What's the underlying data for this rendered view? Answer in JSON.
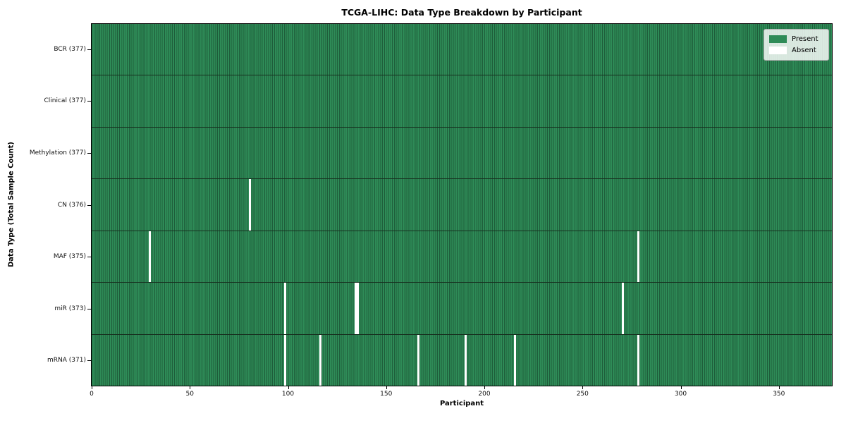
{
  "chart_data": {
    "type": "heatmap",
    "title": "TCGA-LIHC: Data Type Breakdown by Participant",
    "xlabel": "Participant",
    "ylabel": "Data Type (Total Sample Count)",
    "n_participants": 377,
    "x_ticks": [
      0,
      50,
      100,
      150,
      200,
      250,
      300,
      350
    ],
    "grid": false,
    "legend_position": "upper right",
    "rows": [
      {
        "key": "bcr",
        "label": "BCR (377)",
        "data_type": "BCR",
        "total": 377,
        "absent_participants": []
      },
      {
        "key": "clinical",
        "label": "Clinical (377)",
        "data_type": "Clinical",
        "total": 377,
        "absent_participants": []
      },
      {
        "key": "methylation",
        "label": "Methylation (377)",
        "data_type": "Methylation",
        "total": 377,
        "absent_participants": []
      },
      {
        "key": "cn",
        "label": "CN (376)",
        "data_type": "CN",
        "total": 376,
        "absent_participants": [
          80
        ]
      },
      {
        "key": "maf",
        "label": "MAF (375)",
        "data_type": "MAF",
        "total": 375,
        "absent_participants": [
          29,
          278
        ]
      },
      {
        "key": "mir",
        "label": "miR (373)",
        "data_type": "miR",
        "total": 373,
        "absent_participants": [
          98,
          134,
          135,
          270
        ]
      },
      {
        "key": "mrna",
        "label": "mRNA (371)",
        "data_type": "mRNA",
        "total": 371,
        "absent_participants": [
          98,
          116,
          166,
          190,
          215,
          278
        ]
      }
    ],
    "legend": [
      {
        "label": "Present",
        "color": "#2e8b57"
      },
      {
        "label": "Absent",
        "color": "#ffffff"
      }
    ],
    "colors": {
      "present": "#2e8b57",
      "absent": "#ffffff",
      "cell_edge": "#1e5c3a",
      "row_divider": "#17301f",
      "axes_edge": "#000000"
    }
  }
}
